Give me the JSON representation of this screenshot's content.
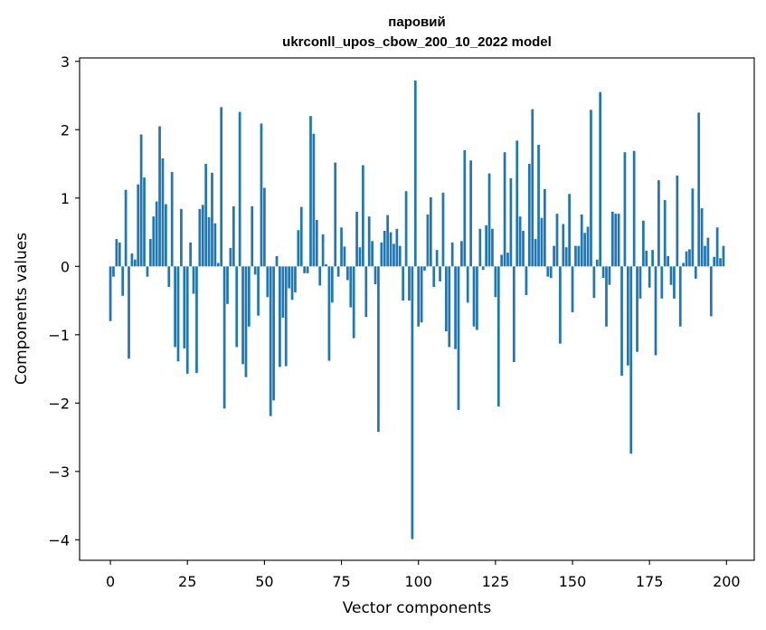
{
  "chart_data": {
    "type": "bar",
    "title_line1": "паровий",
    "title_line2": "ukrconll_upos_cbow_200_10_2022 model",
    "xlabel": "Vector components",
    "ylabel": "Components values",
    "xlim": [
      -10,
      209
    ],
    "ylim": [
      -4.3,
      3.05
    ],
    "xticks": [
      0,
      25,
      50,
      75,
      100,
      125,
      150,
      175,
      200
    ],
    "yticks": [
      3,
      2,
      1,
      0,
      -1,
      -2,
      -3,
      -4
    ],
    "ytick_labels": [
      "3",
      "2",
      "1",
      "0",
      "−1",
      "−2",
      "−3",
      "−4"
    ],
    "bar_color": "#1f77b4",
    "grid": false,
    "values": [
      -0.8,
      -0.15,
      0.4,
      0.35,
      -0.43,
      1.12,
      -1.35,
      0.19,
      0.1,
      1.2,
      1.93,
      1.3,
      -0.15,
      0.4,
      0.73,
      0.95,
      2.05,
      1.58,
      0.91,
      -0.3,
      1.38,
      -1.18,
      -1.39,
      0.84,
      -1.2,
      -1.57,
      0.35,
      -0.4,
      -1.56,
      0.84,
      0.9,
      1.5,
      0.72,
      1.37,
      0.63,
      0.05,
      2.33,
      -2.08,
      -0.55,
      0.27,
      0.88,
      -1.18,
      2.26,
      -1.43,
      -1.62,
      -0.88,
      0.88,
      -0.12,
      -0.72,
      2.09,
      1.15,
      -0.45,
      -2.19,
      -1.96,
      0.15,
      -1.47,
      -0.75,
      -1.46,
      -0.32,
      -0.49,
      -0.38,
      0.53,
      0.87,
      -0.1,
      -0.1,
      2.2,
      1.94,
      0.68,
      -0.28,
      0.47,
      0.03,
      -1.38,
      -0.53,
      1.52,
      -0.15,
      0.57,
      0.29,
      -0.2,
      -0.6,
      -1.05,
      0.8,
      0.28,
      1.48,
      -0.74,
      0.73,
      0.37,
      -0.26,
      -2.42,
      0.35,
      0.52,
      0.75,
      0.5,
      0.33,
      0.55,
      0.3,
      -0.5,
      1.1,
      -0.5,
      -3.99,
      2.72,
      -0.88,
      -0.82,
      -0.06,
      0.76,
      1.01,
      -0.3,
      0.24,
      -0.22,
      1.08,
      -0.95,
      -1.18,
      0.35,
      -1.21,
      -2.1,
      0.37,
      1.7,
      -0.53,
      1.55,
      -0.88,
      -0.93,
      0.55,
      -0.05,
      0.6,
      1.36,
      0.55,
      -0.45,
      -2.05,
      0.17,
      1.67,
      0.2,
      1.29,
      -1.4,
      1.84,
      0.73,
      0.52,
      -0.42,
      1.5,
      2.3,
      0.4,
      1.78,
      0.71,
      1.13,
      -0.15,
      -0.17,
      0.3,
      0.77,
      -1.13,
      0.62,
      0.28,
      1.06,
      -0.67,
      0.3,
      0.3,
      0.76,
      0.49,
      0.58,
      2.29,
      -0.46,
      0.1,
      2.55,
      -0.17,
      -0.88,
      -0.27,
      0.8,
      0.77,
      0.77,
      -1.6,
      1.67,
      -1.45,
      -2.74,
      1.69,
      -1.25,
      -0.47,
      0.67,
      0.23,
      -0.31,
      0.24,
      -1.3,
      1.26,
      -0.47,
      0.97,
      0.15,
      -0.27,
      -0.47,
      1.33,
      -0.88,
      0.05,
      0.22,
      0.25,
      1.14,
      -0.18,
      2.25,
      0.85,
      0.3,
      0.42,
      -0.73,
      0.14,
      0.57,
      0.12,
      0.3
    ]
  }
}
